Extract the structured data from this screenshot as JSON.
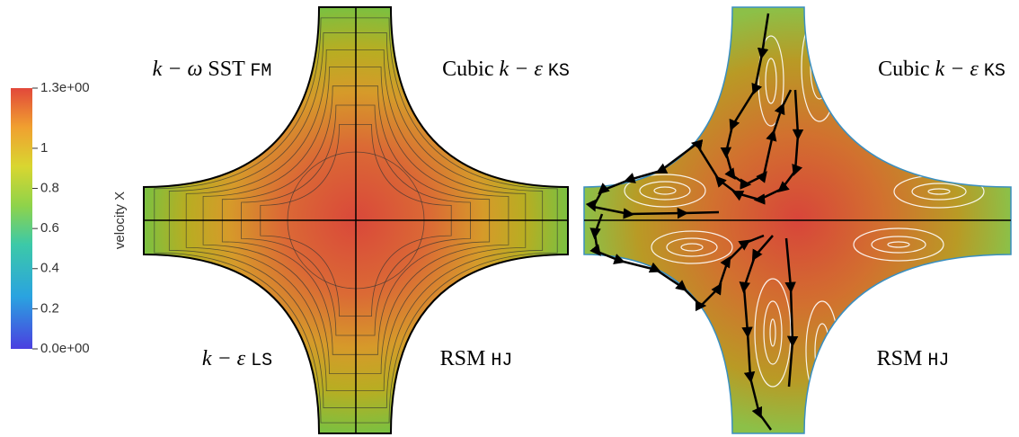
{
  "colorbar": {
    "title": "velocity X",
    "range": [
      0,
      1.3
    ],
    "ticks": [
      {
        "value": 1.3,
        "label": "1.3e+00"
      },
      1,
      0.8,
      0.6,
      0.4,
      0.2,
      {
        "value": 0,
        "label": "0.0e+00"
      }
    ]
  },
  "panels": [
    {
      "labels": [
        {
          "math": "k − ω",
          "text": "SST",
          "code": "FM"
        },
        {
          "text": "Cubic",
          "math": "k − ε",
          "code": "KS"
        },
        {
          "math": "k − ε",
          "code": "LS"
        },
        {
          "text": "RSM",
          "code": "HJ"
        }
      ]
    },
    {
      "labels": [
        {
          "text": "Cubic",
          "math": "k − ε",
          "code": "KS"
        },
        {
          "text": "RSM",
          "code": "HJ"
        }
      ]
    }
  ]
}
